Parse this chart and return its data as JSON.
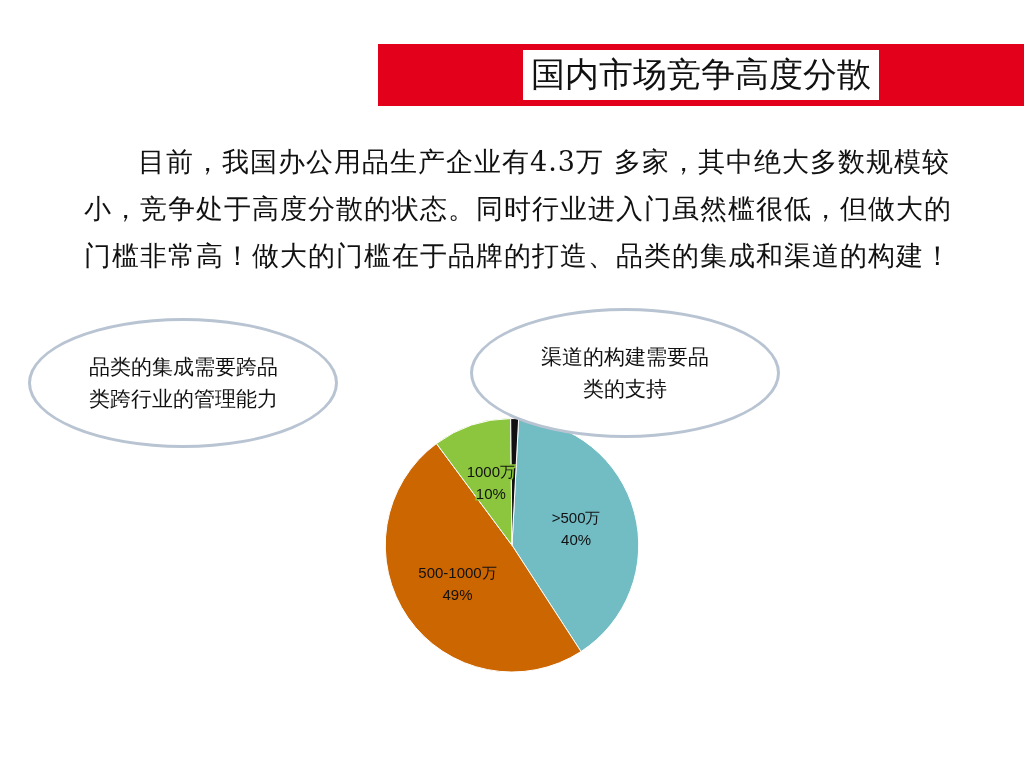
{
  "chart_data": {
    "type": "pie",
    "title": "国内市场竞争高度分散",
    "subtitle": "目前，我国办公用品生产企业有4.3万 多家，其中绝大多数规模较小，竞争处于高度分散的状态。同时行业进入门虽然槛很低，但做大的门槛非常高！做大的门槛在于品牌的打造、品类的集成和渠道的构建！",
    "annotations": [
      "品类的集成需要跨品类跨行业的管理能力",
      "渠道的构建需要品类的支持"
    ],
    "categories": [
      ">500万",
      "500-1000万",
      "1000万",
      null
    ],
    "values": [
      40,
      49,
      10,
      1
    ],
    "value_labels": [
      "40%",
      "49%",
      "10%",
      null
    ],
    "colors": [
      "#72bcc4",
      "#cc6600",
      "#8cc63f",
      "#111111"
    ],
    "legend": false
  }
}
